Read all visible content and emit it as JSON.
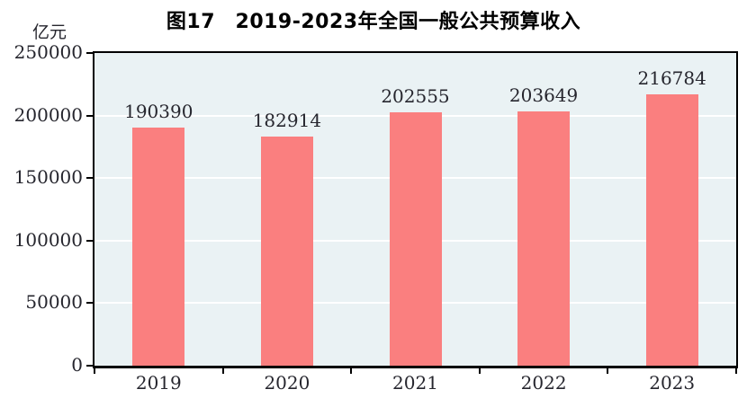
{
  "chart_data": {
    "type": "bar",
    "title": "图17　2019-2023年全国一般公共预算收入",
    "unit_label": "亿元",
    "categories": [
      "2019",
      "2020",
      "2021",
      "2022",
      "2023"
    ],
    "values": [
      190390,
      182914,
      202555,
      203649,
      216784
    ],
    "data_labels": [
      "190390",
      "182914",
      "202555",
      "203649",
      "216784"
    ],
    "xlabel": "",
    "ylabel": "亿元",
    "ylim": [
      0,
      250000
    ],
    "yticks": [
      0,
      50000,
      100000,
      150000,
      200000,
      250000
    ],
    "grid": "on",
    "legend": "none",
    "colors": {
      "bar": "#FA7F7F",
      "plot_background": "#EAF2F4",
      "gridline": "#FFFFFF",
      "axis": "#000000",
      "text": "#26262E",
      "title_text": "#000000"
    }
  }
}
